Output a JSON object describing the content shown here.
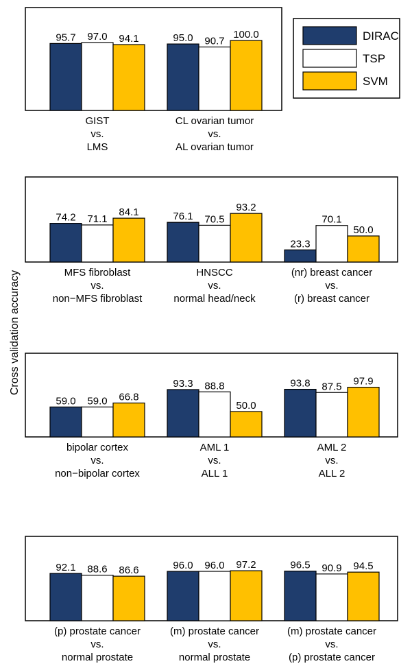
{
  "y_axis_label": "Cross validation accuracy",
  "legend": {
    "placement": "top-right",
    "entries": [
      {
        "label": "DIRAC",
        "color": "#1f3d6d"
      },
      {
        "label": "TSP",
        "color": "#ffffff"
      },
      {
        "label": "SVM",
        "color": "#ffc000"
      }
    ]
  },
  "colors": {
    "DIRAC": "#1f3d6d",
    "TSP": "#ffffff",
    "SVM": "#ffc000",
    "frame": "#000000"
  },
  "chart_data": [
    {
      "type": "bar",
      "ylim": [
        0,
        100
      ],
      "categories": [
        [
          "GIST",
          "vs.",
          "LMS"
        ],
        [
          "CL ovarian tumor",
          "vs.",
          "AL ovarian tumor"
        ]
      ],
      "series": [
        {
          "name": "DIRAC",
          "values": [
            95.7,
            95.0
          ],
          "labels": [
            "95.7",
            "95.0"
          ]
        },
        {
          "name": "TSP",
          "values": [
            97.0,
            90.7
          ],
          "labels": [
            "97.0",
            "90.7"
          ]
        },
        {
          "name": "SVM",
          "values": [
            94.1,
            100.0
          ],
          "labels": [
            "94.1",
            "100.0"
          ]
        }
      ]
    },
    {
      "type": "bar",
      "ylim": [
        0,
        100
      ],
      "categories": [
        [
          "MFS fibroblast",
          "vs.",
          "non−MFS fibroblast"
        ],
        [
          "HNSCC",
          "vs.",
          "normal head/neck"
        ],
        [
          "(nr) breast cancer",
          "vs.",
          "(r) breast cancer"
        ]
      ],
      "series": [
        {
          "name": "DIRAC",
          "values": [
            74.2,
            76.1,
            23.3
          ],
          "labels": [
            "74.2",
            "76.1",
            "23.3"
          ]
        },
        {
          "name": "TSP",
          "values": [
            71.1,
            70.5,
            70.1
          ],
          "labels": [
            "71.1",
            "70.5",
            "70.1"
          ]
        },
        {
          "name": "SVM",
          "values": [
            84.1,
            93.2,
            50.0
          ],
          "labels": [
            "84.1",
            "93.2",
            "50.0"
          ]
        }
      ]
    },
    {
      "type": "bar",
      "ylim": [
        0,
        100
      ],
      "categories": [
        [
          "bipolar cortex",
          "vs.",
          "non−bipolar cortex"
        ],
        [
          "AML 1",
          "vs.",
          "ALL 1"
        ],
        [
          "AML 2",
          "vs.",
          "ALL 2"
        ]
      ],
      "series": [
        {
          "name": "DIRAC",
          "values": [
            59.0,
            93.3,
            93.8
          ],
          "labels": [
            "59.0",
            "93.3",
            "93.8"
          ]
        },
        {
          "name": "TSP",
          "values": [
            59.0,
            88.8,
            87.5
          ],
          "labels": [
            "59.0",
            "88.8",
            "87.5"
          ]
        },
        {
          "name": "SVM",
          "values": [
            66.8,
            50.0,
            97.9
          ],
          "labels": [
            "66.8",
            "50.0",
            "97.9"
          ]
        }
      ]
    },
    {
      "type": "bar",
      "ylim": [
        0,
        100
      ],
      "categories": [
        [
          "(p) prostate cancer",
          "vs.",
          "normal prostate"
        ],
        [
          "(m) prostate cancer",
          "vs.",
          "normal prostate"
        ],
        [
          "(m) prostate cancer",
          "vs.",
          "(p) prostate cancer"
        ]
      ],
      "series": [
        {
          "name": "DIRAC",
          "values": [
            92.1,
            96.0,
            96.5
          ],
          "labels": [
            "92.1",
            "96.0",
            "96.5"
          ]
        },
        {
          "name": "TSP",
          "values": [
            88.6,
            96.0,
            90.9
          ],
          "labels": [
            "88.6",
            "96.0",
            "90.9"
          ]
        },
        {
          "name": "SVM",
          "values": [
            86.6,
            97.2,
            94.5
          ],
          "labels": [
            "86.6",
            "97.2",
            "94.5"
          ]
        }
      ]
    }
  ]
}
